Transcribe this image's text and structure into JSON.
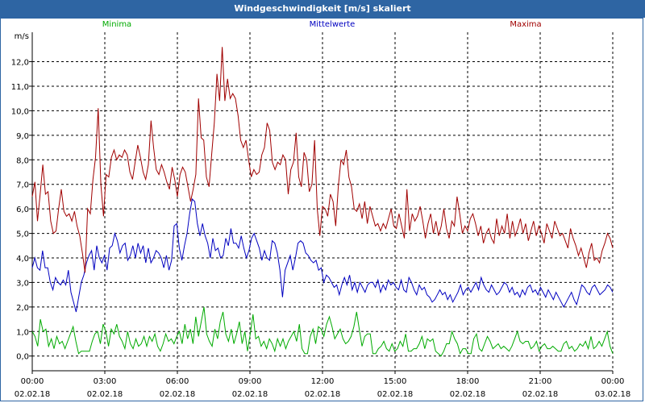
{
  "window": {
    "title": "Windgeschwindigkeit [m/s] skaliert"
  },
  "chart_data": {
    "type": "line",
    "title": "Windgeschwindigkeit [m/s] skaliert",
    "ylabel": "m/s",
    "ylim": [
      -0.6,
      13.2
    ],
    "xlim_hours": [
      0,
      24
    ],
    "grid": true,
    "legend_placement": "top",
    "y_ticks": [
      "0,0",
      "1,0",
      "2,0",
      "3,0",
      "4,0",
      "5,0",
      "6,0",
      "7,0",
      "8,0",
      "9,0",
      "10,0",
      "11,0",
      "12,0"
    ],
    "x_ticks": [
      {
        "time": "00:00",
        "date": "02.02.18"
      },
      {
        "time": "03:00",
        "date": "02.02.18"
      },
      {
        "time": "06:00",
        "date": "02.02.18"
      },
      {
        "time": "09:00",
        "date": "02.02.18"
      },
      {
        "time": "12:00",
        "date": "02.02.18"
      },
      {
        "time": "15:00",
        "date": "02.02.18"
      },
      {
        "time": "18:00",
        "date": "02.02.18"
      },
      {
        "time": "21:00",
        "date": "02.02.18"
      },
      {
        "time": "00:00",
        "date": "03.02.18"
      }
    ],
    "x_step_hours": 0.15,
    "series": [
      {
        "name": "Minima",
        "color": "#00aa00",
        "values": [
          1.0,
          0.8,
          0.4,
          1.5,
          1.0,
          1.1,
          0.4,
          0.7,
          0.3,
          0.8,
          0.5,
          0.6,
          0.3,
          0.6,
          0.9,
          1.2,
          0.6,
          0.1,
          0.2,
          0.2,
          0.2,
          0.2,
          0.6,
          0.9,
          1.0,
          0.5,
          1.3,
          1.0,
          0.4,
          1.1,
          0.9,
          1.3,
          0.8,
          0.6,
          0.3,
          1.0,
          0.5,
          0.3,
          0.7,
          0.4,
          0.5,
          0.8,
          0.4,
          0.8,
          0.6,
          0.9,
          0.4,
          0.2,
          0.5,
          0.9,
          0.6,
          0.7,
          0.5,
          0.8,
          1.0,
          0.5,
          1.3,
          0.7,
          1.1,
          0.5,
          1.6,
          0.8,
          1.4,
          2.0,
          0.9,
          0.6,
          0.4,
          1.1,
          0.7,
          1.4,
          1.8,
          0.9,
          0.6,
          1.1,
          0.5,
          0.9,
          1.4,
          0.5,
          1.0,
          0.2,
          0.9,
          1.7,
          0.7,
          0.8,
          0.4,
          0.6,
          0.3,
          0.7,
          0.5,
          0.2,
          0.7,
          0.4,
          0.7,
          0.3,
          0.6,
          0.8,
          1.0,
          0.6,
          1.3,
          0.3,
          0.1,
          0.1,
          0.8,
          1.1,
          0.5,
          1.2,
          1.1,
          0.8,
          1.3,
          1.6,
          1.2,
          0.7,
          0.9,
          1.1,
          0.7,
          0.5,
          0.6,
          0.8,
          1.2,
          1.8,
          1.1,
          0.4,
          0.8,
          0.9,
          0.9,
          0.1,
          0.1,
          0.3,
          0.4,
          0.6,
          0.3,
          0.2,
          0.5,
          0.2,
          0.3,
          0.6,
          0.4,
          0.9,
          0.2,
          0.2,
          0.3,
          0.3,
          0.5,
          0.8,
          0.3,
          0.7,
          0.6,
          0.7,
          0.2,
          0.1,
          0.0,
          0.2,
          0.5,
          0.5,
          1.0,
          0.7,
          0.5,
          0.1,
          0.3,
          0.3,
          0.1,
          0.1,
          0.7,
          0.9,
          0.3,
          0.2,
          0.5,
          0.8,
          0.6,
          0.3,
          0.4,
          0.5,
          0.3,
          0.4,
          0.3,
          0.2,
          0.4,
          0.7,
          1.0,
          0.6,
          0.5,
          0.6,
          0.6,
          0.3,
          0.4,
          0.6,
          0.2,
          0.4,
          0.5,
          0.3,
          0.3,
          0.4,
          0.3,
          0.2,
          0.2,
          0.5,
          0.6,
          0.3,
          0.4,
          0.2,
          0.3,
          0.5,
          0.4,
          0.6,
          0.3,
          0.8,
          0.3,
          0.4,
          0.6,
          0.4,
          0.7,
          1.0,
          0.4,
          0.1
        ]
      },
      {
        "name": "Mittelwerte",
        "color": "#0000c0",
        "values": [
          3.6,
          4.0,
          3.6,
          3.5,
          4.3,
          3.6,
          3.6,
          3.0,
          2.7,
          3.2,
          3.0,
          2.9,
          3.1,
          2.9,
          3.5,
          2.6,
          2.2,
          1.8,
          2.4,
          3.0,
          3.3,
          3.8,
          4.1,
          4.3,
          3.5,
          4.5,
          4.0,
          3.8,
          4.1,
          3.5,
          4.4,
          4.5,
          5.0,
          4.7,
          4.2,
          4.5,
          4.6,
          3.9,
          4.1,
          4.5,
          4.0,
          4.6,
          4.2,
          4.5,
          3.8,
          4.4,
          3.8,
          4.0,
          4.3,
          4.2,
          4.0,
          3.6,
          4.1,
          3.5,
          3.9,
          5.3,
          5.4,
          4.4,
          3.9,
          4.5,
          5.0,
          5.8,
          6.4,
          6.3,
          5.4,
          4.9,
          5.4,
          4.9,
          4.6,
          4.0,
          4.8,
          4.3,
          4.4,
          4.0,
          4.1,
          4.8,
          4.5,
          5.2,
          4.6,
          4.6,
          4.4,
          4.9,
          4.4,
          4.0,
          4.3,
          4.8,
          5.0,
          4.7,
          4.4,
          3.9,
          4.3,
          4.0,
          3.9,
          4.7,
          4.6,
          4.2,
          3.5,
          2.4,
          3.5,
          3.8,
          4.1,
          3.5,
          4.0,
          4.6,
          4.7,
          4.6,
          4.2,
          4.1,
          3.9,
          3.8,
          3.9,
          3.5,
          3.6,
          3.0,
          3.3,
          3.2,
          3.0,
          2.8,
          2.9,
          2.5,
          2.9,
          3.2,
          2.9,
          3.3,
          2.7,
          3.0,
          2.6,
          3.0,
          2.8,
          2.6,
          2.9,
          3.0,
          3.0,
          2.8,
          3.1,
          2.6,
          2.9,
          2.7,
          3.1,
          2.9,
          3.0,
          2.8,
          2.7,
          3.1,
          2.7,
          2.6,
          3.2,
          3.0,
          2.7,
          2.5,
          2.9,
          2.7,
          2.8,
          2.5,
          2.4,
          2.2,
          2.3,
          2.5,
          2.7,
          2.5,
          2.6,
          2.3,
          2.5,
          2.2,
          2.4,
          2.6,
          2.9,
          2.5,
          2.7,
          2.8,
          2.6,
          2.8,
          3.0,
          2.7,
          3.2,
          2.9,
          2.7,
          2.6,
          2.9,
          2.7,
          2.5,
          2.6,
          2.8,
          3.0,
          2.9,
          2.6,
          2.8,
          2.5,
          2.6,
          2.4,
          2.7,
          2.5,
          2.8,
          2.9,
          2.6,
          2.7,
          2.5,
          2.8,
          2.6,
          2.4,
          2.7,
          2.5,
          2.3,
          2.6,
          2.4,
          2.2,
          2.0,
          2.2,
          2.4,
          2.6,
          2.3,
          2.1,
          2.5,
          2.9,
          2.8,
          2.6,
          2.5,
          2.8,
          2.9,
          2.7,
          2.5,
          2.6,
          2.7,
          2.9,
          2.8,
          2.6
        ]
      },
      {
        "name": "Maxima",
        "color": "#a00000",
        "values": [
          6.5,
          7.1,
          5.5,
          6.6,
          7.8,
          6.6,
          6.7,
          5.5,
          5.0,
          5.1,
          6.0,
          6.8,
          5.9,
          5.7,
          5.8,
          5.5,
          5.9,
          5.3,
          4.9,
          4.2,
          3.4,
          6.0,
          5.8,
          7.2,
          8.1,
          10.1,
          7.0,
          5.7,
          7.4,
          7.3,
          8.1,
          8.4,
          8.0,
          8.2,
          8.1,
          8.4,
          8.2,
          7.5,
          7.2,
          7.9,
          8.6,
          8.1,
          7.5,
          7.2,
          7.8,
          9.6,
          8.5,
          7.6,
          7.4,
          7.8,
          7.5,
          7.1,
          6.8,
          7.7,
          7.2,
          6.5,
          7.4,
          7.7,
          7.5,
          6.9,
          6.3,
          6.8,
          7.4,
          10.5,
          8.9,
          8.8,
          7.3,
          6.9,
          8.2,
          9.5,
          11.5,
          10.4,
          12.6,
          10.4,
          11.3,
          10.5,
          10.7,
          10.5,
          9.8,
          8.8,
          8.5,
          8.8,
          8.0,
          7.3,
          7.6,
          7.4,
          7.5,
          8.2,
          8.5,
          9.5,
          9.2,
          7.9,
          7.6,
          7.9,
          7.8,
          8.2,
          8.0,
          6.6,
          7.6,
          7.9,
          9.1,
          7.3,
          6.9,
          8.3,
          8.0,
          6.7,
          7.0,
          8.8,
          6.0,
          4.9,
          6.1,
          6.0,
          5.7,
          6.6,
          6.3,
          5.3,
          6.9,
          8.0,
          7.8,
          8.4,
          7.3,
          6.9,
          6.0,
          5.9,
          6.2,
          5.6,
          6.3,
          5.4,
          6.1,
          5.7,
          5.3,
          5.4,
          5.1,
          5.4,
          5.2,
          5.6,
          6.0,
          5.3,
          5.2,
          5.8,
          5.3,
          4.8,
          6.8,
          5.1,
          5.8,
          5.5,
          5.7,
          6.1,
          5.5,
          4.8,
          5.4,
          5.8,
          5.0,
          5.5,
          4.9,
          5.3,
          6.0,
          5.2,
          4.8,
          5.5,
          5.3,
          6.5,
          5.8,
          5.0,
          5.3,
          5.1,
          5.6,
          5.8,
          5.4,
          4.9,
          5.3,
          4.6,
          5.0,
          5.2,
          4.8,
          4.6,
          5.6,
          4.9,
          5.3,
          5.0,
          5.8,
          4.8,
          5.5,
          4.9,
          5.2,
          5.6,
          5.0,
          5.4,
          4.7,
          5.1,
          5.5,
          4.9,
          5.3,
          5.0,
          4.6,
          5.4,
          5.1,
          4.8,
          5.5,
          5.2,
          4.9,
          5.0,
          4.7,
          4.4,
          5.2,
          4.8,
          4.5,
          4.1,
          4.4,
          4.0,
          3.6,
          4.2,
          4.6,
          3.9,
          4.0,
          3.8,
          4.3,
          4.6,
          5.0,
          4.8,
          4.4
        ]
      }
    ]
  }
}
